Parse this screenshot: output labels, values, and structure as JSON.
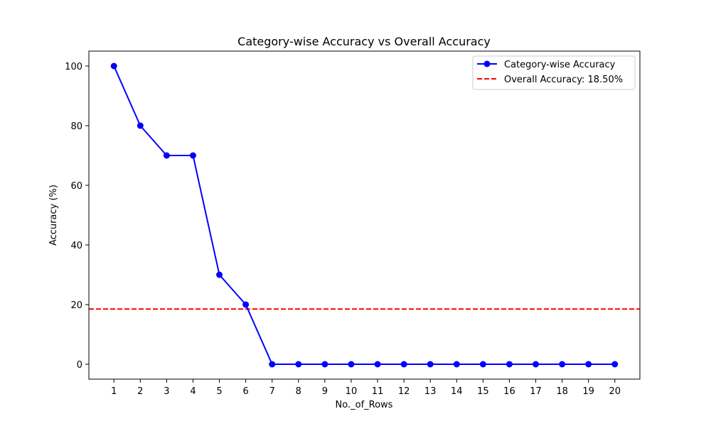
{
  "chart_data": {
    "type": "line",
    "title": "Category-wise Accuracy vs Overall Accuracy",
    "xlabel": "No._of_Rows",
    "ylabel": "Accuracy (%)",
    "x": [
      1,
      2,
      3,
      4,
      5,
      6,
      7,
      8,
      9,
      10,
      11,
      12,
      13,
      14,
      15,
      16,
      17,
      18,
      19,
      20
    ],
    "x_tick_labels": [
      "1",
      "2",
      "3",
      "4",
      "5",
      "6",
      "7",
      "8",
      "9",
      "10",
      "11",
      "12",
      "13",
      "14",
      "15",
      "16",
      "17",
      "18",
      "19",
      "20"
    ],
    "y_ticks": [
      0,
      20,
      40,
      60,
      80,
      100
    ],
    "y_tick_labels": [
      "0",
      "20",
      "40",
      "60",
      "80",
      "100"
    ],
    "xlim": [
      0.05,
      20.95
    ],
    "ylim": [
      -5,
      105
    ],
    "grid": false,
    "legend_position": "top-right",
    "series": [
      {
        "name": "Category-wise Accuracy",
        "style": "solid-line-with-circle-markers",
        "color": "#0000ff",
        "values": [
          100,
          80,
          70,
          70,
          30,
          20,
          0,
          0,
          0,
          0,
          0,
          0,
          0,
          0,
          0,
          0,
          0,
          0,
          0,
          0
        ]
      }
    ],
    "reference_lines": [
      {
        "name": "Overall Accuracy: 18.50%",
        "orientation": "horizontal",
        "style": "dashed",
        "color": "#ff0000",
        "value": 18.5
      }
    ]
  }
}
